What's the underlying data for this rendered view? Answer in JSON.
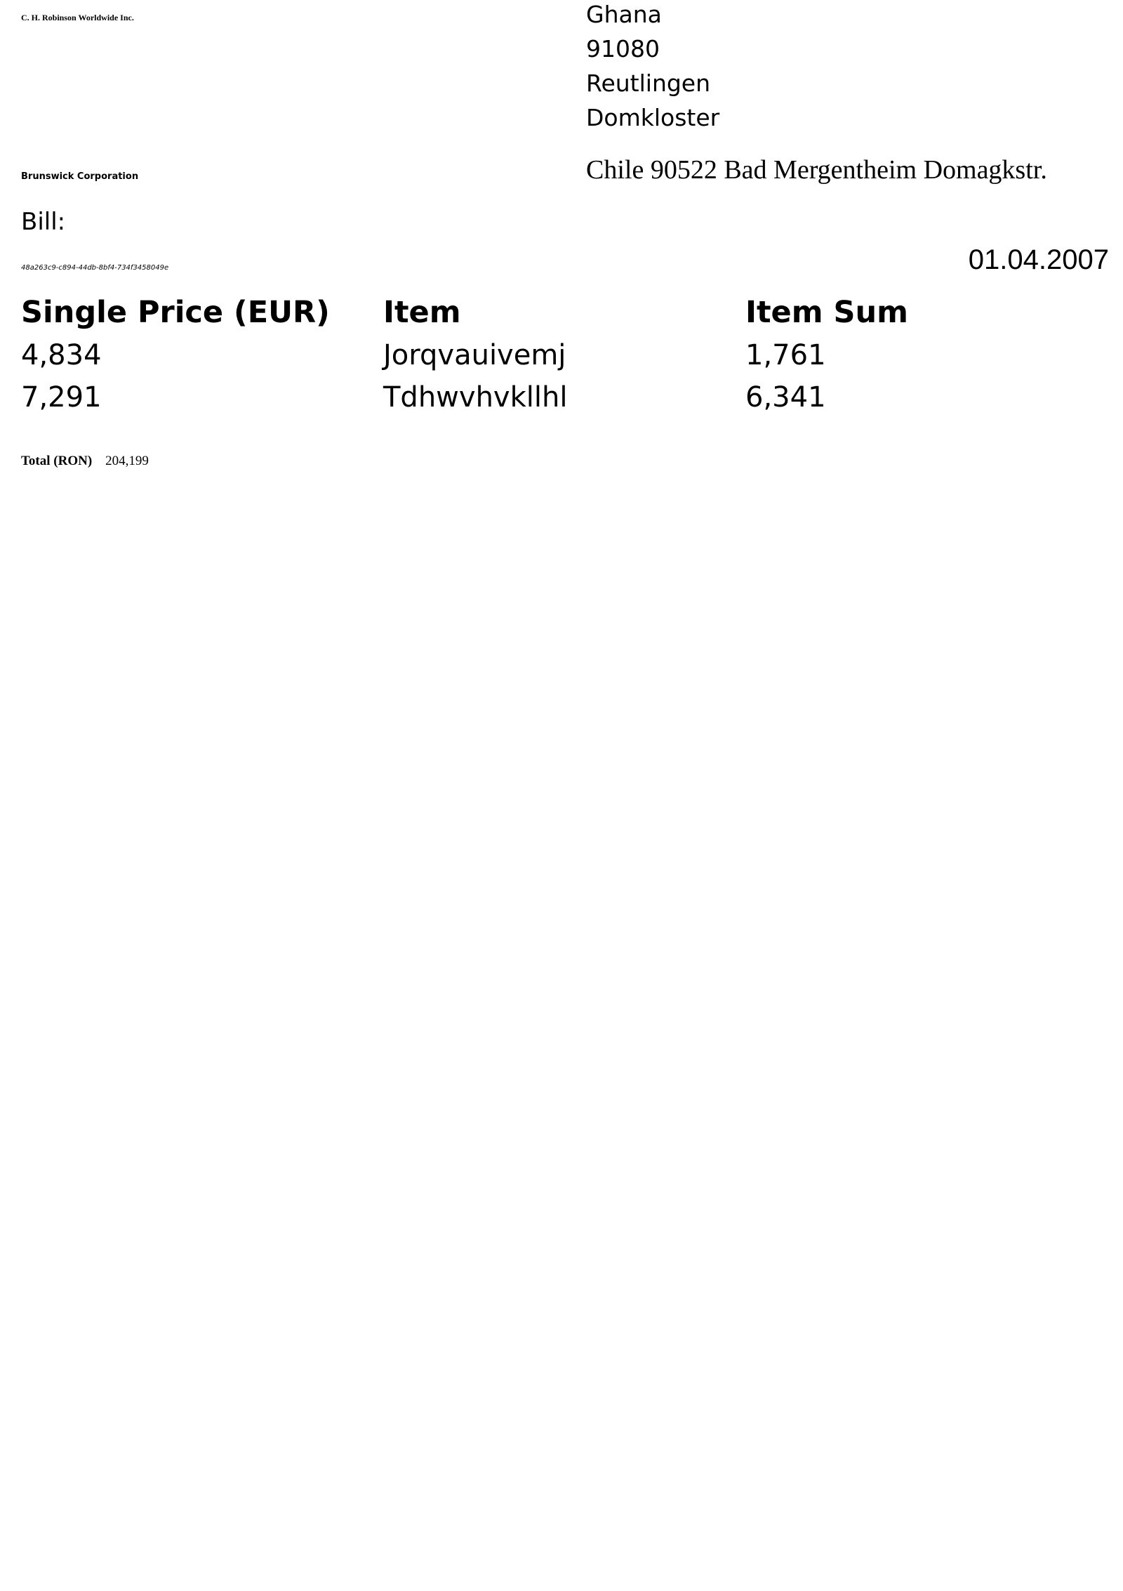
{
  "sender": {
    "name": "C. H. Robinson Worldwide Inc."
  },
  "recipient": {
    "lines": [
      "Ghana",
      "91080",
      "Reutlingen",
      "Domkloster"
    ]
  },
  "customer": {
    "name": "Brunswick Corporation",
    "address": "Chile 90522 Bad Mergentheim Domagkstr."
  },
  "bill": {
    "label": "Bill:",
    "id": "48a263c9-c894-44db-8bf4-734f3458049e",
    "date": "01.04.2007"
  },
  "table": {
    "headers": [
      "Single Price (EUR)",
      "Item",
      "Item Sum"
    ],
    "rows": [
      [
        "4,834",
        "Jorqvauivemj",
        "1,761"
      ],
      [
        "7,291",
        "Tdhwvhvkllhl",
        "6,341"
      ]
    ]
  },
  "total": {
    "label": "Total (RON)",
    "value": "204,199"
  }
}
